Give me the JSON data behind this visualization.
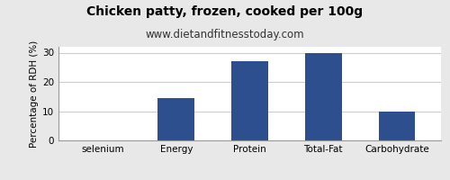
{
  "title": "Chicken patty, frozen, cooked per 100g",
  "subtitle": "www.dietandfitnesstoday.com",
  "categories": [
    "selenium",
    "Energy",
    "Protein",
    "Total-Fat",
    "Carbohydrate"
  ],
  "values": [
    0,
    14.5,
    27,
    30,
    10
  ],
  "bar_color": "#2d4f8e",
  "ylabel": "Percentage of RDH (%)",
  "ylim": [
    0,
    32
  ],
  "yticks": [
    0,
    10,
    20,
    30
  ],
  "background_color": "#e8e8e8",
  "plot_background": "#ffffff",
  "title_fontsize": 10,
  "subtitle_fontsize": 8.5,
  "ylabel_fontsize": 7.5,
  "tick_fontsize": 7.5
}
